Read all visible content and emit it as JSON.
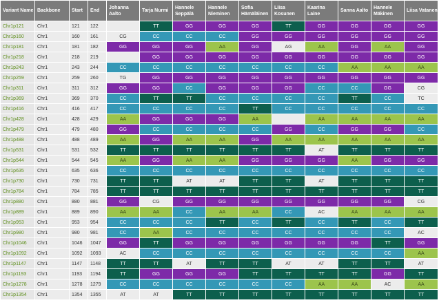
{
  "columns": [
    "Variant Name",
    "Backbone",
    "Start",
    "End",
    "Johanna Aalto",
    "Tarja Nurmi",
    "Hannele Seppälä",
    "Hannele Nieminen",
    "Sofia Hämäläinen",
    "Liisa Kosunen",
    "Kaarina Laine",
    "Sanna Aalto",
    "Hannele Mäkinen",
    "Liisa Vatanen"
  ],
  "colors": {
    "GG": "#7d2aa8",
    "CC": "#3498b6",
    "TT": "#0d5f4d",
    "AA": "#9cc44c",
    "other": "#ececec"
  },
  "rows": [
    {
      "name": "Chr1p121",
      "backbone": "Chr1",
      "start": "121",
      "end": "122",
      "g": [
        "",
        "TT",
        "GG",
        "GG",
        "GG",
        "TT",
        "GG",
        "GG",
        "GG",
        "GG"
      ]
    },
    {
      "name": "Chr1p160",
      "backbone": "Chr1",
      "start": "160",
      "end": "161",
      "g": [
        "CG",
        "CC",
        "CC",
        "CC",
        "GG",
        "GG",
        "GG",
        "GG",
        "GG",
        "GG"
      ]
    },
    {
      "name": "Chr1p181",
      "backbone": "Chr1",
      "start": "181",
      "end": "182",
      "g": [
        "GG",
        "GG",
        "GG",
        "AA",
        "GG",
        "AG",
        "AA",
        "GG",
        "AA",
        "GG"
      ]
    },
    {
      "name": "Chr1p218",
      "backbone": "Chr1",
      "start": "218",
      "end": "219",
      "g": [
        "",
        "GG",
        "GG",
        "GG",
        "GG",
        "GG",
        "GG",
        "GG",
        "GG",
        "GG"
      ]
    },
    {
      "name": "Chr1p243",
      "backbone": "Chr1",
      "start": "243",
      "end": "244",
      "g": [
        "CC",
        "CC",
        "CC",
        "CC",
        "CC",
        "CC",
        "CC",
        "AA",
        "AA",
        "AA"
      ]
    },
    {
      "name": "Chr1p259",
      "backbone": "Chr1",
      "start": "259",
      "end": "260",
      "g": [
        "TG",
        "GG",
        "GG",
        "GG",
        "GG",
        "GG",
        "GG",
        "GG",
        "GG",
        "GG"
      ]
    },
    {
      "name": "Chr1p311",
      "backbone": "Chr1",
      "start": "311",
      "end": "312",
      "g": [
        "GG",
        "GG",
        "CC",
        "GG",
        "GG",
        "GG",
        "CC",
        "CC",
        "GG",
        "CG"
      ]
    },
    {
      "name": "Chr1p369",
      "backbone": "Chr1",
      "start": "369",
      "end": "370",
      "g": [
        "CC",
        "TT",
        "TT",
        "CC",
        "CC",
        "CC",
        "CC",
        "TT",
        "CC",
        "TC"
      ]
    },
    {
      "name": "Chr1p416",
      "backbone": "Chr1",
      "start": "416",
      "end": "417",
      "g": [
        "CC",
        "CC",
        "CC",
        "CC",
        "TT",
        "CC",
        "CC",
        "CC",
        "CC",
        "CC"
      ]
    },
    {
      "name": "Chr1p428",
      "backbone": "Chr1",
      "start": "428",
      "end": "429",
      "g": [
        "AA",
        "GG",
        "GG",
        "GG",
        "AA",
        "",
        "AA",
        "AA",
        "AA",
        "AA"
      ]
    },
    {
      "name": "Chr1p479",
      "backbone": "Chr1",
      "start": "479",
      "end": "480",
      "g": [
        "GG",
        "CC",
        "CC",
        "CC",
        "CC",
        "GG",
        "CC",
        "GG",
        "GG",
        "CC"
      ]
    },
    {
      "name": "Chr1p488",
      "backbone": "Chr1",
      "start": "488",
      "end": "489",
      "g": [
        "AA",
        "GG",
        "AA",
        "AA",
        "GG",
        "AA",
        "AA",
        "AA",
        "AA",
        "AA"
      ]
    },
    {
      "name": "Chr1p531",
      "backbone": "Chr1",
      "start": "531",
      "end": "532",
      "g": [
        "TT",
        "TT",
        "TT",
        "TT",
        "TT",
        "TT",
        "AT",
        "TT",
        "TT",
        "TT"
      ]
    },
    {
      "name": "Chr1p544",
      "backbone": "Chr1",
      "start": "544",
      "end": "545",
      "g": [
        "AA",
        "GG",
        "AA",
        "AA",
        "GG",
        "GG",
        "GG",
        "AA",
        "GG",
        "GG"
      ]
    },
    {
      "name": "Chr1p635",
      "backbone": "Chr1",
      "start": "635",
      "end": "636",
      "g": [
        "CC",
        "CC",
        "CC",
        "CC",
        "CC",
        "CC",
        "CC",
        "CC",
        "CC",
        "CC"
      ]
    },
    {
      "name": "Chr1p730",
      "backbone": "Chr1",
      "start": "730",
      "end": "731",
      "g": [
        "TT",
        "TT",
        "AT",
        "AT",
        "TT",
        "TT",
        "AT",
        "TT",
        "TT",
        "TT"
      ]
    },
    {
      "name": "Chr1p784",
      "backbone": "Chr1",
      "start": "784",
      "end": "785",
      "g": [
        "TT",
        "TT",
        "TT",
        "TT",
        "TT",
        "TT",
        "TT",
        "TT",
        "TT",
        "TT"
      ]
    },
    {
      "name": "Chr1p880",
      "backbone": "Chr1",
      "start": "880",
      "end": "881",
      "g": [
        "GG",
        "CG",
        "GG",
        "GG",
        "GG",
        "GG",
        "GG",
        "GG",
        "GG",
        "CG"
      ]
    },
    {
      "name": "Chr1p889",
      "backbone": "Chr1",
      "start": "889",
      "end": "890",
      "g": [
        "AA",
        "AA",
        "CC",
        "AA",
        "AA",
        "CC",
        "AC",
        "AA",
        "AA",
        "AA"
      ]
    },
    {
      "name": "Chr1p953",
      "backbone": "Chr1",
      "start": "953",
      "end": "954",
      "g": [
        "CC",
        "CC",
        "CC",
        "TT",
        "CC",
        "TT",
        "CC",
        "TT",
        "CC",
        "TT"
      ]
    },
    {
      "name": "Chr1p980",
      "backbone": "Chr1",
      "start": "980",
      "end": "981",
      "g": [
        "CC",
        "AA",
        "CC",
        "CC",
        "CC",
        "CC",
        "CC",
        "CC",
        "CC",
        "AC"
      ]
    },
    {
      "name": "Chr1p1046",
      "backbone": "Chr1",
      "start": "1046",
      "end": "1047",
      "g": [
        "GG",
        "TT",
        "GG",
        "GG",
        "GG",
        "GG",
        "GG",
        "GG",
        "TT",
        "GG"
      ]
    },
    {
      "name": "Chr1p1092",
      "backbone": "Chr1",
      "start": "1092",
      "end": "1093",
      "g": [
        "AC",
        "CC",
        "CC",
        "CC",
        "CC",
        "CC",
        "CC",
        "CC",
        "CC",
        "AA"
      ]
    },
    {
      "name": "Chr1p1147",
      "backbone": "Chr1",
      "start": "1147",
      "end": "1148",
      "g": [
        "TT",
        "TT",
        "AT",
        "TT",
        "TT",
        "AT",
        "AT",
        "TT",
        "TT",
        "AT"
      ]
    },
    {
      "name": "Chr1p1193",
      "backbone": "Chr1",
      "start": "1193",
      "end": "1194",
      "g": [
        "TT",
        "GG",
        "GG",
        "GG",
        "TT",
        "TT",
        "TT",
        "TT",
        "GG",
        "TT"
      ]
    },
    {
      "name": "Chr1p1278",
      "backbone": "Chr1",
      "start": "1278",
      "end": "1279",
      "g": [
        "CC",
        "CC",
        "CC",
        "CC",
        "CC",
        "CC",
        "AA",
        "AA",
        "AC",
        "AA"
      ]
    },
    {
      "name": "Chr1p1354",
      "backbone": "Chr1",
      "start": "1354",
      "end": "1355",
      "g": [
        "AT",
        "AT",
        "TT",
        "TT",
        "TT",
        "TT",
        "TT",
        "TT",
        "TT",
        "TT"
      ]
    }
  ]
}
